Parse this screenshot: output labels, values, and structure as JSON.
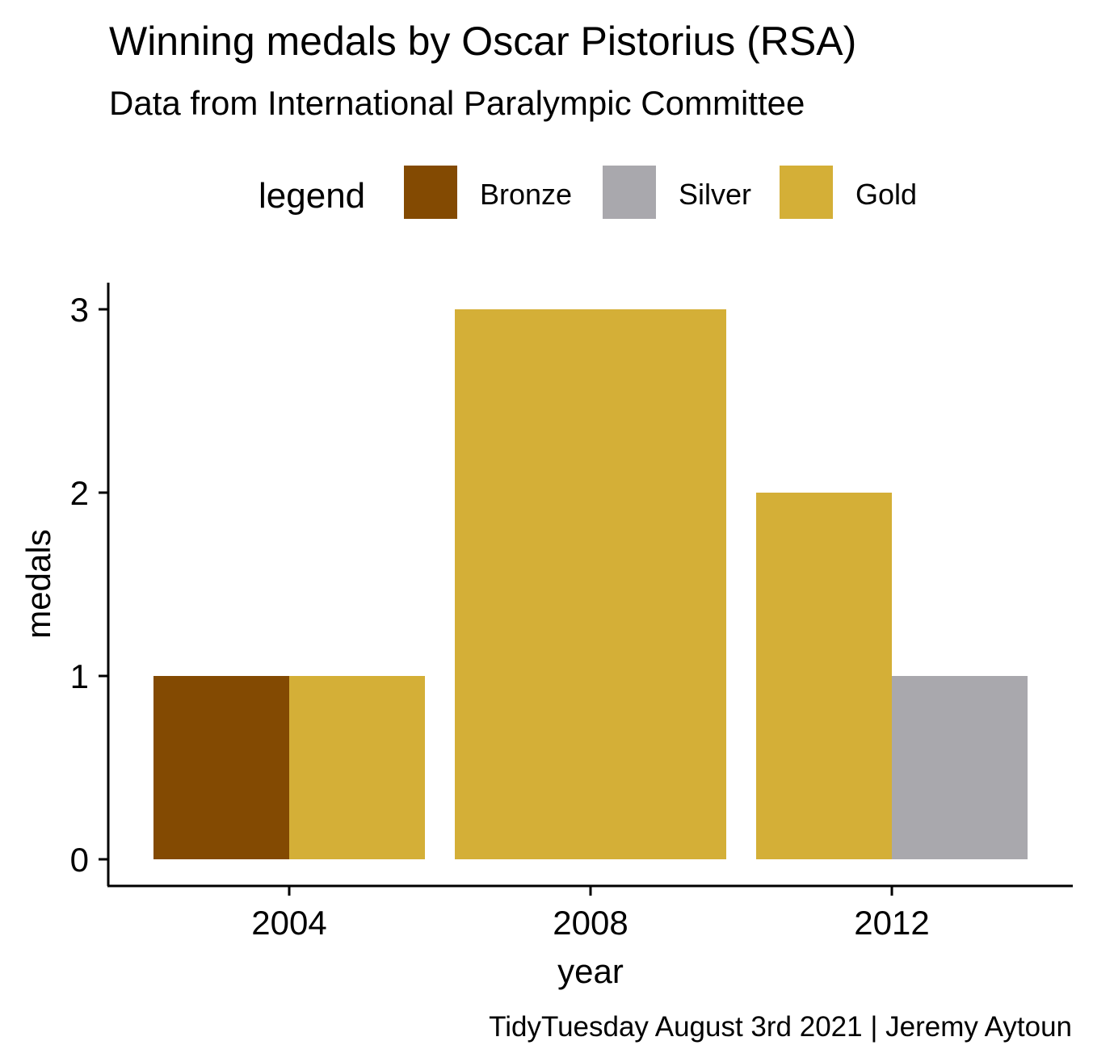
{
  "chart_data": {
    "type": "bar",
    "title": "Winning medals by Oscar Pistorius (RSA)",
    "subtitle": "Data from International Paralympic Committee",
    "caption": "TidyTuesday August 3rd 2021 | Jeremy Aytoun",
    "xlabel": "year",
    "ylabel": "medals",
    "categories": [
      "2004",
      "2008",
      "2012"
    ],
    "series": [
      {
        "name": "Bronze",
        "color": "#834A02",
        "values": [
          1,
          0,
          0
        ]
      },
      {
        "name": "Silver",
        "color": "#A9A8AD",
        "values": [
          0,
          0,
          1
        ]
      },
      {
        "name": "Gold",
        "color": "#D4AF37",
        "values": [
          1,
          3,
          2
        ]
      }
    ],
    "bar_order": [
      [
        "Bronze",
        "Gold"
      ],
      [
        "Gold"
      ],
      [
        "Gold",
        "Silver"
      ]
    ],
    "legend": {
      "title": "legend",
      "position": "top"
    },
    "ylim": [
      0,
      3
    ],
    "yticks": [
      0,
      1,
      2,
      3
    ],
    "grid": false
  }
}
